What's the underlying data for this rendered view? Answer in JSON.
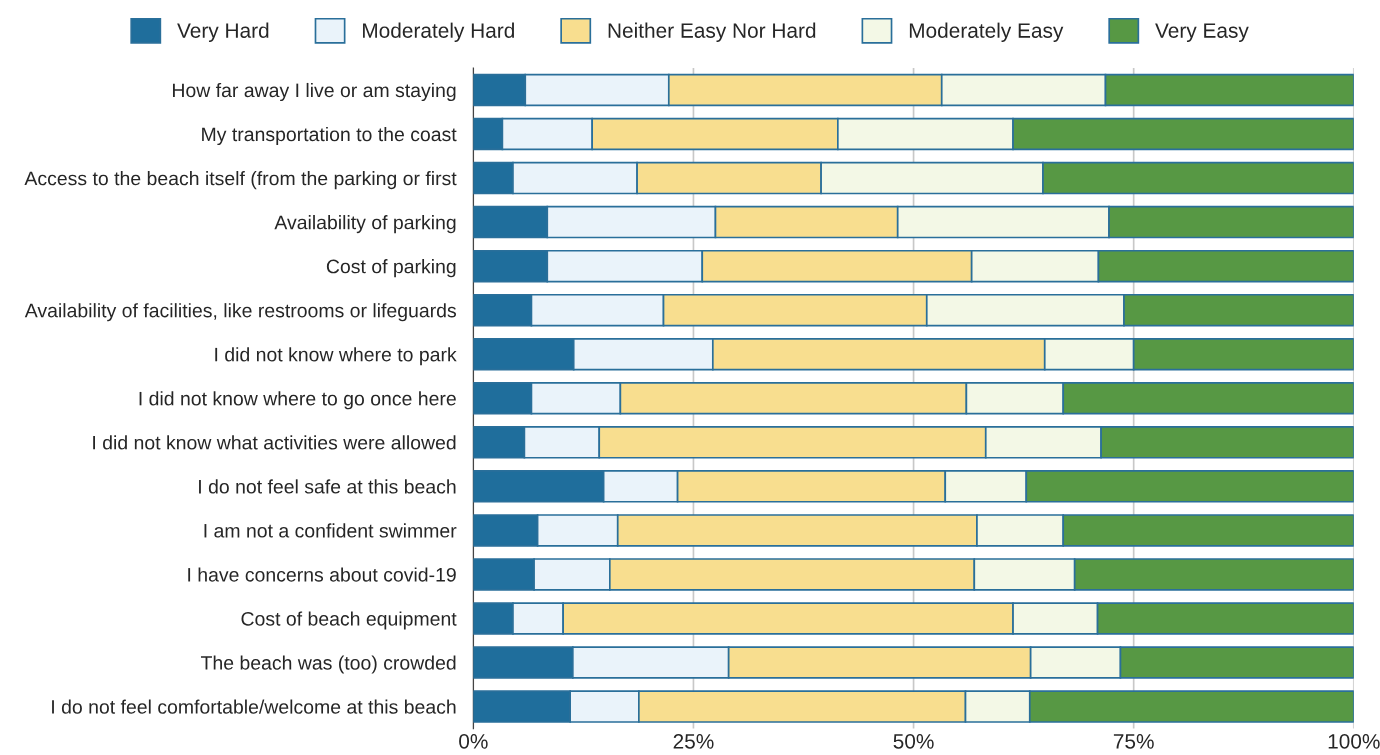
{
  "chart_data": {
    "type": "bar",
    "orientation": "horizontal",
    "stacked": true,
    "categories": [
      "How far away I live or am staying",
      "My transportation to the coast",
      "Access to the beach itself (from the parking or first",
      "Availability of parking",
      "Cost of parking",
      "Availability of facilities, like restrooms or lifeguards",
      "I did not know where to park",
      "I did not know where to go once here",
      "I did not know what activities were allowed",
      "I do not feel safe at this beach",
      "I am not a confident swimmer",
      "I have concerns about covid-19",
      "Cost of beach equipment",
      "The beach was (too) crowded",
      "I do not feel comfortable/welcome at this beach"
    ],
    "series": [
      {
        "name": "Very Hard",
        "color": "#1f6e9c",
        "values": [
          5.9,
          3.3,
          4.5,
          8.4,
          8.4,
          6.6,
          11.4,
          6.6,
          5.8,
          14.8,
          7.3,
          6.9,
          4.5,
          11.3,
          11.0
        ]
      },
      {
        "name": "Moderately Hard",
        "color": "#eaf3fa",
        "values": [
          16.3,
          10.2,
          14.1,
          19.1,
          17.6,
          15.0,
          15.8,
          10.1,
          8.5,
          8.4,
          9.1,
          8.6,
          5.7,
          17.7,
          7.8
        ]
      },
      {
        "name": "Neither Easy Nor Hard",
        "color": "#f8de8f",
        "values": [
          31.0,
          27.9,
          20.9,
          20.7,
          30.6,
          29.9,
          37.7,
          39.3,
          43.9,
          30.4,
          40.8,
          41.4,
          51.1,
          34.3,
          37.1
        ]
      },
      {
        "name": "Moderately Easy",
        "color": "#f3f8e6",
        "values": [
          18.6,
          19.9,
          25.2,
          24.0,
          14.4,
          22.4,
          10.1,
          11.0,
          13.1,
          9.2,
          9.8,
          11.4,
          9.6,
          10.2,
          7.3
        ]
      },
      {
        "name": "Very Easy",
        "color": "#579844",
        "values": [
          28.2,
          38.7,
          35.3,
          27.8,
          29.0,
          26.1,
          25.0,
          33.0,
          28.7,
          37.2,
          33.0,
          31.7,
          29.1,
          26.5,
          36.8
        ]
      }
    ],
    "xlim": [
      0,
      100
    ],
    "xticks": [
      {
        "value": 0,
        "label": "0%"
      },
      {
        "value": 25,
        "label": "25%"
      },
      {
        "value": 50,
        "label": "50%"
      },
      {
        "value": 75,
        "label": "75%"
      },
      {
        "value": 100,
        "label": "100%"
      }
    ],
    "grid": "x",
    "legend": "top"
  }
}
